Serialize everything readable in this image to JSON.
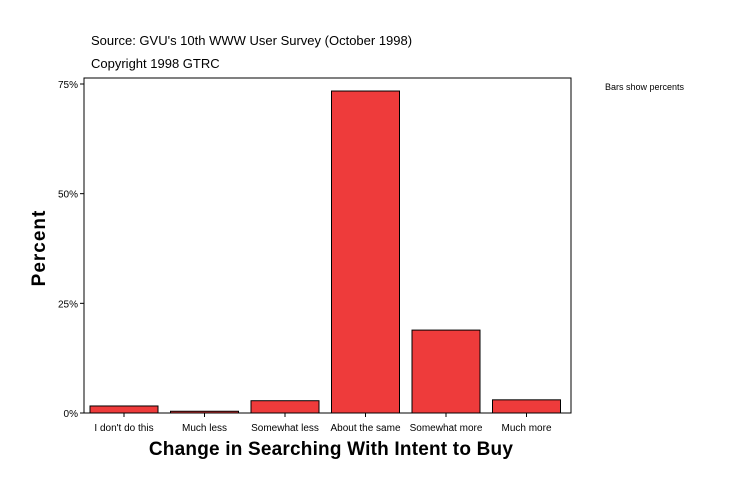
{
  "chart_data": {
    "type": "bar",
    "source": "Source: GVU's 10th WWW User Survey (October 1998)",
    "copyright": "Copyright 1998 GTRC",
    "note": "Bars show percents",
    "xlabel": "Change in Searching With Intent to Buy",
    "ylabel": "Percent",
    "categories": [
      "I don't do this",
      "Much less",
      "Somewhat less",
      "About the same",
      "Somewhat more",
      "Much more"
    ],
    "values": [
      1.6,
      0.4,
      2.8,
      73.4,
      18.9,
      3.0
    ],
    "ylim": [
      0,
      75
    ],
    "yticks": [
      0,
      25,
      50,
      75
    ],
    "ytick_labels": [
      "0%",
      "25%",
      "50%",
      "75%"
    ],
    "bar_color": "#ee3b3b",
    "grid": false
  }
}
